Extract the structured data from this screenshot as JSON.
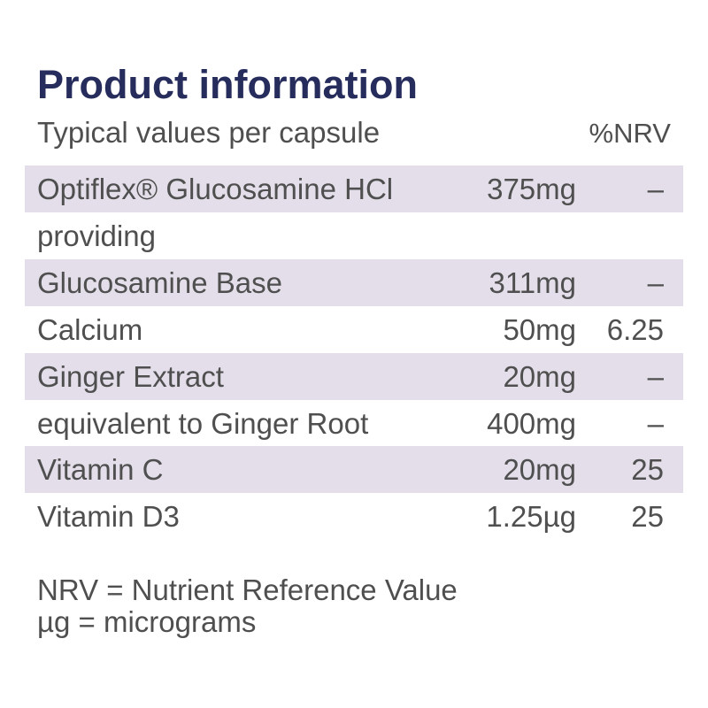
{
  "header": {
    "title": "Product information",
    "subtitle": "Typical values per capsule",
    "nrv_heading": "%NRV"
  },
  "table": {
    "rows": [
      {
        "name": "Optiflex® Glucosamine HCl",
        "amount": "375mg",
        "nrv": "–",
        "shaded": true
      },
      {
        "name": "providing",
        "shaded": false
      },
      {
        "name": "Glucosamine Base",
        "amount": "311mg",
        "nrv": "–",
        "shaded": true
      },
      {
        "name": "Calcium",
        "amount": "50mg",
        "nrv": "6.25",
        "shaded": false
      },
      {
        "name": "Ginger Extract",
        "amount": "20mg",
        "nrv": "–",
        "shaded": true
      },
      {
        "name": "equivalent to Ginger Root",
        "amount": "400mg",
        "nrv": "–",
        "shaded": false
      },
      {
        "name": "Vitamin C",
        "amount": "20mg",
        "nrv": "25",
        "shaded": true
      },
      {
        "name": "Vitamin D3",
        "amount": "1.25µg",
        "nrv": "25",
        "shaded": false
      }
    ]
  },
  "footnotes": [
    "NRV = Nutrient Reference Value",
    "µg = micrograms"
  ]
}
